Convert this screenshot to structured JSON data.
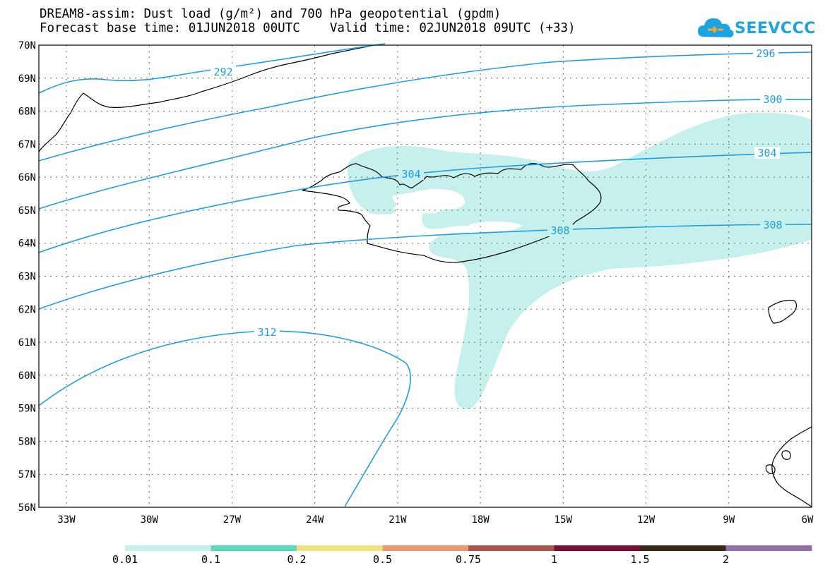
{
  "title_line1": "DREAM8-assim: Dust load (g/m²) and 700 hPa geopotential (gpdm)",
  "title_line2": "Forecast base time: 01JUN2018 00UTC    Valid time: 02JUN2018 09UTC (+33)",
  "logo_text": "SEEVCCC",
  "map": {
    "lat_labels": [
      "70N",
      "69N",
      "68N",
      "67N",
      "66N",
      "65N",
      "64N",
      "63N",
      "62N",
      "61N",
      "60N",
      "59N",
      "58N",
      "57N",
      "56N"
    ],
    "lon_labels": [
      "33W",
      "30W",
      "27W",
      "24W",
      "21W",
      "18W",
      "15W",
      "12W",
      "9W",
      "6W"
    ],
    "contour_labels": [
      "292",
      "296",
      "300",
      "304",
      "304",
      "308",
      "308",
      "312"
    ],
    "dust_color": "#c6f0eb",
    "contour_color": "#1f9ee6",
    "coast_color": "#000000"
  },
  "colorbar": {
    "labels": [
      "0.01",
      "0.1",
      "0.2",
      "0.5",
      "0.75",
      "1",
      "1.5",
      "2"
    ],
    "colors": [
      "#c6f0eb",
      "#5dd8bb",
      "#f2e181",
      "#e89a72",
      "#a9574c",
      "#7a0e33",
      "#3a2914",
      "#936ea8"
    ]
  }
}
